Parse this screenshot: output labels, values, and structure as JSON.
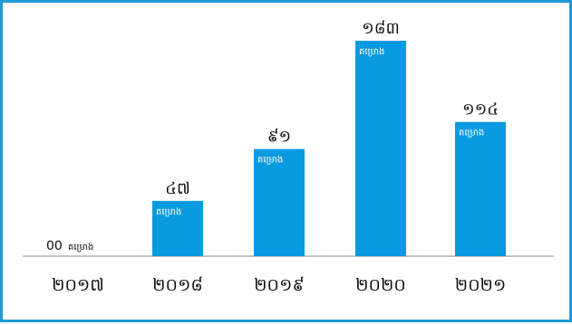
{
  "chart_data": {
    "type": "bar",
    "categories": [
      "២០១៧",
      "២០១៨",
      "២០១៩",
      "២០២០",
      "២០២១"
    ],
    "values": [
      0,
      47,
      91,
      183,
      114
    ],
    "value_labels": [
      "00",
      "៤៧",
      "៩១",
      "១៨៣",
      "១១៤"
    ],
    "unit_label": "គម្រោង",
    "title": "",
    "xlabel": "",
    "ylabel": "",
    "ylim": [
      0,
      183
    ],
    "grid": false,
    "legend": "none"
  },
  "colors": {
    "bar": "#0a9ae0",
    "frame": "#1f9ad6",
    "axis": "#888888",
    "text": "#111111",
    "bar_text": "#ffffff"
  }
}
